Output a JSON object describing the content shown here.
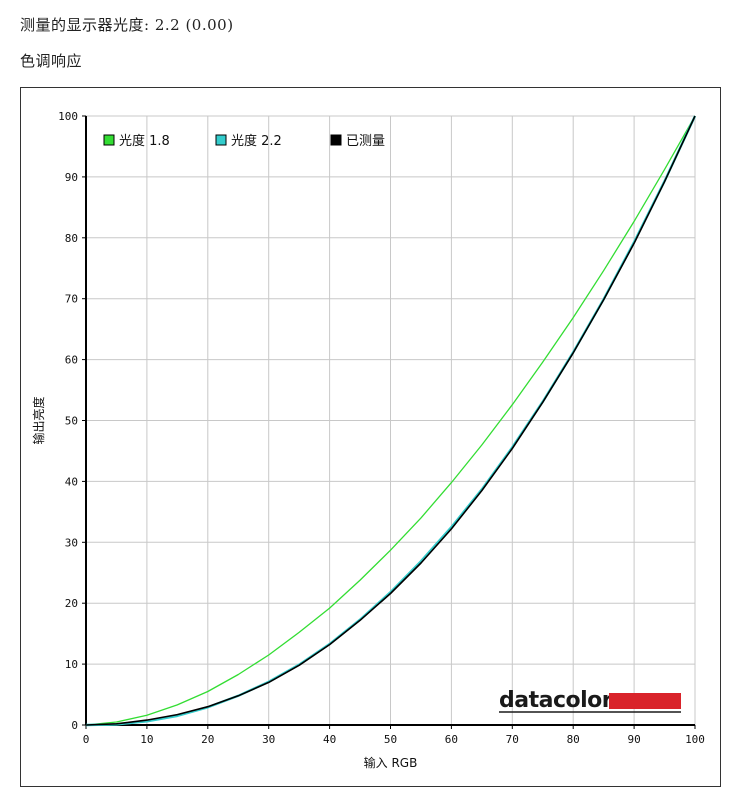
{
  "header": {
    "gamma_line": "测量的显示器光度: 2.2 (0.00)",
    "section_title": "色调响应"
  },
  "logo": {
    "text": "datacolor",
    "bar_color": "#d9232a"
  },
  "chart_data": {
    "type": "line",
    "xlabel": "输入 RGB",
    "ylabel": "输出亮度",
    "xlim": [
      0,
      100
    ],
    "ylim": [
      0,
      100
    ],
    "xticks": [
      0,
      10,
      20,
      30,
      40,
      50,
      60,
      70,
      80,
      90,
      100
    ],
    "yticks": [
      0,
      10,
      20,
      30,
      40,
      50,
      60,
      70,
      80,
      90,
      100
    ],
    "grid": true,
    "legend_position": "top-left",
    "series": [
      {
        "name": "光度 1.8",
        "color": "#33dd33",
        "x": [
          0,
          5,
          10,
          15,
          20,
          25,
          30,
          35,
          40,
          45,
          50,
          55,
          60,
          65,
          70,
          75,
          80,
          85,
          90,
          95,
          100
        ],
        "values": [
          0,
          0.5,
          1.6,
          3.3,
          5.5,
          8.3,
          11.5,
          15.2,
          19.2,
          23.8,
          28.7,
          34.0,
          39.8,
          46.0,
          52.6,
          59.6,
          66.9,
          74.6,
          82.7,
          91.2,
          100
        ]
      },
      {
        "name": "光度 2.2",
        "color": "#33cccc",
        "x": [
          0,
          5,
          10,
          15,
          20,
          25,
          30,
          35,
          40,
          45,
          50,
          55,
          60,
          65,
          70,
          75,
          80,
          85,
          90,
          95,
          100
        ],
        "values": [
          0,
          0.1,
          0.6,
          1.5,
          2.9,
          4.8,
          7.1,
          9.9,
          13.3,
          17.3,
          21.8,
          26.9,
          32.5,
          38.7,
          45.6,
          53.1,
          61.2,
          69.9,
          79.3,
          89.3,
          100
        ]
      },
      {
        "name": "已测量",
        "color": "#000000",
        "x": [
          0,
          5,
          10,
          15,
          20,
          25,
          30,
          35,
          40,
          45,
          50,
          55,
          60,
          65,
          70,
          75,
          80,
          85,
          90,
          95,
          100
        ],
        "values": [
          0,
          0.2,
          0.8,
          1.7,
          3.0,
          4.8,
          7.0,
          9.8,
          13.2,
          17.2,
          21.6,
          26.6,
          32.2,
          38.5,
          45.4,
          53.0,
          61.1,
          69.8,
          79.1,
          89.2,
          100
        ]
      }
    ]
  }
}
